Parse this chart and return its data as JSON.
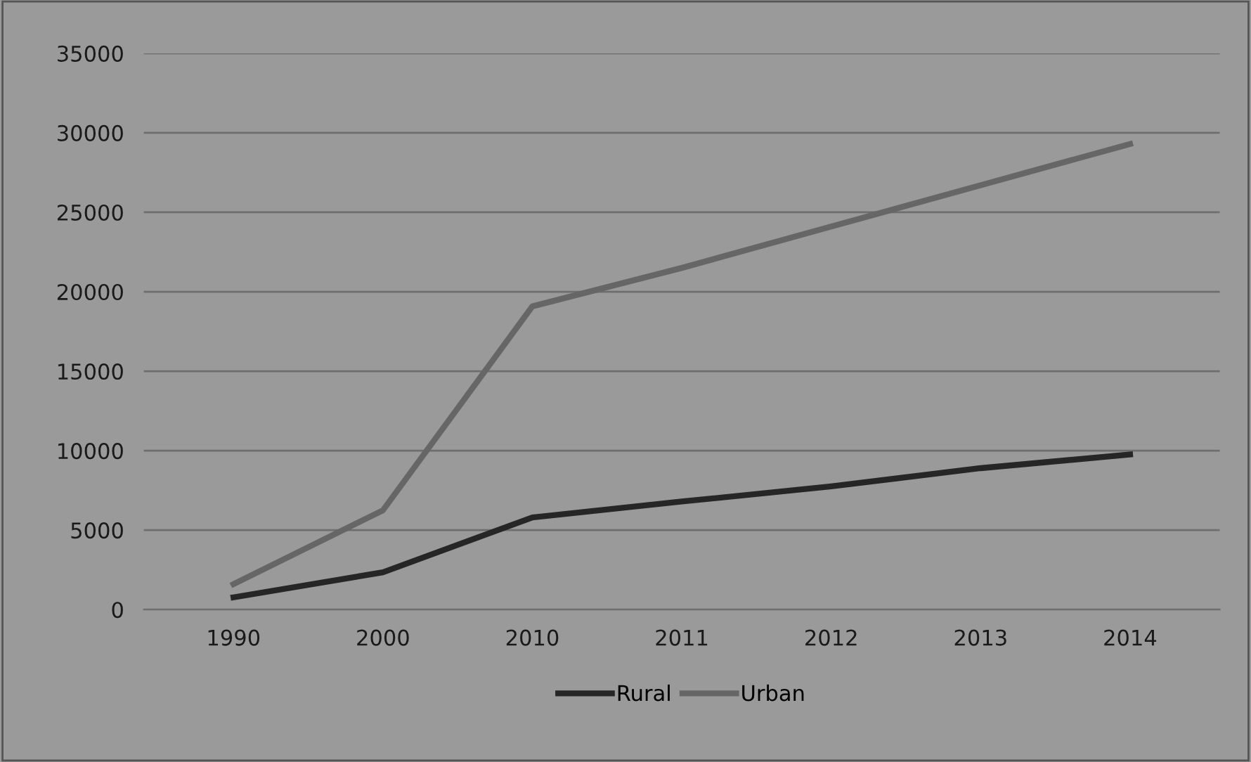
{
  "chart_data": {
    "type": "line",
    "categories": [
      "1990",
      "2000",
      "2010",
      "2011",
      "2012",
      "2013",
      "2014"
    ],
    "series": [
      {
        "name": "Rural",
        "color": "#262626",
        "values": [
          770,
          2350,
          5800,
          6800,
          7750,
          8900,
          9760
        ]
      },
      {
        "name": "Urban",
        "color": "#666666",
        "values": [
          1600,
          6250,
          19080,
          21500,
          24100,
          26700,
          29300
        ]
      }
    ],
    "ylim": [
      0,
      35000
    ],
    "yticks": [
      0,
      5000,
      10000,
      15000,
      20000,
      25000,
      30000,
      35000
    ],
    "grid": "y",
    "legend": "bottom",
    "marker": "none",
    "line_style": "solid"
  }
}
